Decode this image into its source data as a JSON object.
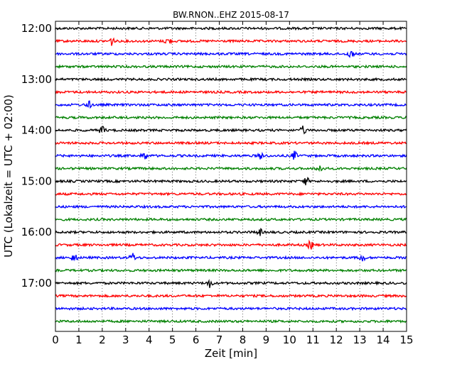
{
  "chart_data": {
    "type": "line",
    "title": "BW.RNON..EHZ 2015-08-17",
    "xlabel": "Zeit  [min]",
    "ylabel": "UTC (Lokalzeit = UTC + 02:00)",
    "xlim": [
      0,
      15
    ],
    "x_ticks": [
      "0",
      "1",
      "2",
      "3",
      "4",
      "5",
      "6",
      "7",
      "8",
      "9",
      "10",
      "11",
      "12",
      "13",
      "14",
      "15"
    ],
    "y_tick_labels": [
      "12:00",
      "13:00",
      "14:00",
      "15:00",
      "16:00",
      "17:00"
    ],
    "grid": "vertical dotted lines at each minute",
    "trace_colors": [
      "#000000",
      "#ff0000",
      "#0000ff",
      "#008000"
    ],
    "traces": [
      {
        "start": "12:00",
        "color": "#000000",
        "events_min": []
      },
      {
        "start": "12:15",
        "color": "#ff0000",
        "events_min": [
          2.4,
          4.8
        ]
      },
      {
        "start": "12:30",
        "color": "#0000ff",
        "events_min": [
          12.6
        ]
      },
      {
        "start": "12:45",
        "color": "#008000",
        "events_min": []
      },
      {
        "start": "13:00",
        "color": "#000000",
        "events_min": []
      },
      {
        "start": "13:15",
        "color": "#ff0000",
        "events_min": []
      },
      {
        "start": "13:30",
        "color": "#0000ff",
        "events_min": [
          1.4
        ]
      },
      {
        "start": "13:45",
        "color": "#008000",
        "events_min": []
      },
      {
        "start": "14:00",
        "color": "#000000",
        "events_min": [
          2.0,
          10.6
        ]
      },
      {
        "start": "14:15",
        "color": "#ff0000",
        "events_min": []
      },
      {
        "start": "14:30",
        "color": "#0000ff",
        "events_min": [
          3.8,
          8.8,
          10.2
        ]
      },
      {
        "start": "14:45",
        "color": "#008000",
        "events_min": [
          11.3
        ]
      },
      {
        "start": "15:00",
        "color": "#000000",
        "events_min": [
          10.7
        ]
      },
      {
        "start": "15:15",
        "color": "#ff0000",
        "events_min": []
      },
      {
        "start": "15:30",
        "color": "#0000ff",
        "events_min": []
      },
      {
        "start": "15:45",
        "color": "#008000",
        "events_min": []
      },
      {
        "start": "16:00",
        "color": "#000000",
        "events_min": [
          8.7
        ]
      },
      {
        "start": "16:15",
        "color": "#ff0000",
        "events_min": [
          10.9
        ]
      },
      {
        "start": "16:30",
        "color": "#0000ff",
        "events_min": [
          0.8,
          3.3,
          13.1
        ]
      },
      {
        "start": "16:45",
        "color": "#008000",
        "events_min": []
      },
      {
        "start": "17:00",
        "color": "#000000",
        "events_min": [
          6.6
        ]
      },
      {
        "start": "17:15",
        "color": "#ff0000",
        "events_min": []
      },
      {
        "start": "17:30",
        "color": "#0000ff",
        "events_min": []
      },
      {
        "start": "17:45",
        "color": "#008000",
        "events_min": []
      }
    ]
  }
}
